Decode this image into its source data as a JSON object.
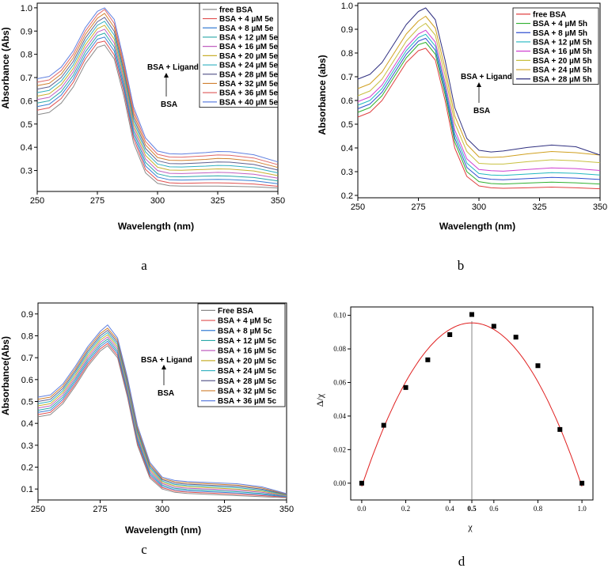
{
  "chart_data": [
    {
      "id": "a",
      "type": "line",
      "caption": "a",
      "xlabel": "Wavelength (nm)",
      "ylabel": "Absorbance (Abs)",
      "xlim": [
        250,
        350
      ],
      "ylim": [
        0.21,
        1.02
      ],
      "xticks": [
        250,
        275,
        300,
        325,
        350
      ],
      "xtick_labels": [
        "250",
        "275",
        "300",
        "325",
        "350"
      ],
      "yticks": [
        0.3,
        0.4,
        0.5,
        0.6,
        0.7,
        0.8,
        0.9,
        1.0
      ],
      "ytick_labels": [
        "0.3",
        "0.4",
        "0.5",
        "0.6",
        "0.7",
        "0.8",
        "0.9",
        "1.0"
      ],
      "annotation_top": "BSA + Ligand",
      "annotation_bottom": "BSA",
      "x": [
        250,
        255,
        260,
        265,
        270,
        275,
        278,
        282,
        286,
        290,
        295,
        300,
        305,
        310,
        320,
        325,
        330,
        340,
        350
      ],
      "series": [
        {
          "name": "free BSA",
          "color": "#8a8a8a",
          "values": [
            0.54,
            0.55,
            0.59,
            0.66,
            0.76,
            0.83,
            0.84,
            0.78,
            0.62,
            0.42,
            0.29,
            0.245,
            0.235,
            0.233,
            0.233,
            0.233,
            0.232,
            0.23,
            0.225
          ]
        },
        {
          "name": "BSA + 4 µM 5e",
          "color": "#e05050",
          "values": [
            0.56,
            0.57,
            0.61,
            0.68,
            0.78,
            0.85,
            0.857,
            0.797,
            0.64,
            0.44,
            0.305,
            0.258,
            0.247,
            0.245,
            0.247,
            0.247,
            0.246,
            0.242,
            0.232
          ]
        },
        {
          "name": "BSA + 8 µM 5e",
          "color": "#3a7fd5",
          "values": [
            0.575,
            0.585,
            0.625,
            0.695,
            0.795,
            0.865,
            0.874,
            0.814,
            0.655,
            0.455,
            0.32,
            0.272,
            0.26,
            0.259,
            0.261,
            0.262,
            0.261,
            0.256,
            0.243
          ]
        },
        {
          "name": "BSA + 12 µM 5e",
          "color": "#2aa8a8",
          "values": [
            0.59,
            0.6,
            0.64,
            0.71,
            0.81,
            0.88,
            0.891,
            0.831,
            0.67,
            0.47,
            0.335,
            0.286,
            0.274,
            0.273,
            0.276,
            0.277,
            0.276,
            0.27,
            0.255
          ]
        },
        {
          "name": "BSA + 16 µM 5e",
          "color": "#c060c0",
          "values": [
            0.605,
            0.615,
            0.655,
            0.725,
            0.825,
            0.895,
            0.908,
            0.848,
            0.685,
            0.485,
            0.35,
            0.3,
            0.288,
            0.287,
            0.29,
            0.292,
            0.291,
            0.284,
            0.267
          ]
        },
        {
          "name": "BSA + 20 µM 5e",
          "color": "#c8b030",
          "values": [
            0.62,
            0.63,
            0.67,
            0.74,
            0.84,
            0.91,
            0.925,
            0.865,
            0.7,
            0.5,
            0.365,
            0.314,
            0.302,
            0.301,
            0.305,
            0.307,
            0.306,
            0.298,
            0.278
          ]
        },
        {
          "name": "BSA + 24 µM 5e",
          "color": "#30b0c0",
          "values": [
            0.635,
            0.645,
            0.685,
            0.755,
            0.855,
            0.925,
            0.942,
            0.882,
            0.715,
            0.515,
            0.38,
            0.328,
            0.316,
            0.315,
            0.319,
            0.322,
            0.321,
            0.312,
            0.29
          ]
        },
        {
          "name": "BSA + 28 µM 5e",
          "color": "#606090",
          "values": [
            0.65,
            0.66,
            0.7,
            0.77,
            0.87,
            0.94,
            0.959,
            0.899,
            0.73,
            0.53,
            0.395,
            0.342,
            0.33,
            0.329,
            0.334,
            0.337,
            0.336,
            0.326,
            0.302
          ]
        },
        {
          "name": "BSA + 32 µM 5e",
          "color": "#d08030",
          "values": [
            0.665,
            0.675,
            0.715,
            0.785,
            0.885,
            0.955,
            0.976,
            0.916,
            0.745,
            0.545,
            0.41,
            0.356,
            0.344,
            0.343,
            0.348,
            0.352,
            0.351,
            0.34,
            0.313
          ]
        },
        {
          "name": "BSA + 36 µM 5e",
          "color": "#e06868",
          "values": [
            0.68,
            0.69,
            0.73,
            0.8,
            0.9,
            0.97,
            0.993,
            0.933,
            0.76,
            0.56,
            0.425,
            0.37,
            0.358,
            0.357,
            0.363,
            0.367,
            0.366,
            0.354,
            0.325
          ]
        },
        {
          "name": "BSA + 40 µM 5e",
          "color": "#6080e0",
          "values": [
            0.695,
            0.705,
            0.745,
            0.815,
            0.915,
            0.985,
            1.0,
            0.95,
            0.775,
            0.575,
            0.44,
            0.384,
            0.372,
            0.371,
            0.377,
            0.382,
            0.381,
            0.368,
            0.337
          ]
        }
      ]
    },
    {
      "id": "b",
      "type": "line",
      "caption": "b",
      "xlabel": "Wavelength (nm)",
      "ylabel": "Absorbance (abs)",
      "xlim": [
        250,
        350
      ],
      "ylim": [
        0.19,
        1.01
      ],
      "xticks": [
        250,
        275,
        300,
        325,
        350
      ],
      "xtick_labels": [
        "250",
        "275",
        "300",
        "325",
        "350"
      ],
      "yticks": [
        0.2,
        0.3,
        0.4,
        0.5,
        0.6,
        0.7,
        0.8,
        0.9,
        1.0
      ],
      "ytick_labels": [
        "0.2",
        "0.3",
        "0.4",
        "0.5",
        "0.6",
        "0.7",
        "0.8",
        "0.9",
        "1.0"
      ],
      "annotation_top": "BSA + Ligand",
      "annotation_bottom": "BSA",
      "x": [
        250,
        255,
        260,
        265,
        270,
        275,
        278,
        282,
        286,
        290,
        295,
        300,
        305,
        310,
        320,
        330,
        340,
        350
      ],
      "series": [
        {
          "name": "free BSA",
          "color": "#e04040",
          "values": [
            0.53,
            0.55,
            0.6,
            0.68,
            0.76,
            0.81,
            0.82,
            0.77,
            0.6,
            0.4,
            0.28,
            0.24,
            0.232,
            0.23,
            0.232,
            0.235,
            0.232,
            0.228
          ]
        },
        {
          "name": "BSA + 4 µM 5h",
          "color": "#30b030",
          "values": [
            0.55,
            0.57,
            0.62,
            0.7,
            0.78,
            0.835,
            0.845,
            0.795,
            0.625,
            0.425,
            0.3,
            0.258,
            0.25,
            0.248,
            0.252,
            0.256,
            0.253,
            0.248
          ]
        },
        {
          "name": "BSA + 8 µM 5h",
          "color": "#3050d0",
          "values": [
            0.565,
            0.585,
            0.635,
            0.715,
            0.795,
            0.85,
            0.862,
            0.812,
            0.642,
            0.442,
            0.318,
            0.275,
            0.268,
            0.266,
            0.271,
            0.276,
            0.273,
            0.267
          ]
        },
        {
          "name": "BSA + 12 µM 5h",
          "color": "#20b8c0",
          "values": [
            0.58,
            0.6,
            0.65,
            0.73,
            0.81,
            0.865,
            0.879,
            0.829,
            0.659,
            0.459,
            0.336,
            0.292,
            0.286,
            0.284,
            0.29,
            0.296,
            0.293,
            0.286
          ]
        },
        {
          "name": "BSA + 16 µM 5h",
          "color": "#d040d0",
          "values": [
            0.595,
            0.615,
            0.665,
            0.745,
            0.825,
            0.88,
            0.896,
            0.846,
            0.676,
            0.476,
            0.354,
            0.309,
            0.304,
            0.302,
            0.309,
            0.316,
            0.313,
            0.305
          ]
        },
        {
          "name": "BSA + 20 µM 5h",
          "color": "#c8c040",
          "values": [
            0.62,
            0.64,
            0.69,
            0.77,
            0.85,
            0.905,
            0.925,
            0.875,
            0.705,
            0.505,
            0.385,
            0.335,
            0.332,
            0.332,
            0.342,
            0.35,
            0.346,
            0.338
          ]
        },
        {
          "name": "BSA + 24 µM 5h",
          "color": "#d0a020",
          "values": [
            0.65,
            0.67,
            0.72,
            0.8,
            0.88,
            0.935,
            0.955,
            0.905,
            0.735,
            0.535,
            0.415,
            0.362,
            0.36,
            0.362,
            0.375,
            0.385,
            0.38,
            0.37
          ]
        },
        {
          "name": "BSA + 28 µM 5h",
          "color": "#303080",
          "values": [
            0.69,
            0.71,
            0.76,
            0.84,
            0.92,
            0.975,
            0.99,
            0.94,
            0.77,
            0.57,
            0.44,
            0.39,
            0.383,
            0.387,
            0.402,
            0.412,
            0.405,
            0.37
          ]
        }
      ]
    },
    {
      "id": "c",
      "type": "line",
      "caption": "c",
      "xlabel": "Wavelength (nm)",
      "ylabel": "Absorbance(Abs)",
      "xlim": [
        250,
        350
      ],
      "ylim": [
        0.05,
        0.95
      ],
      "xticks": [
        250,
        275,
        300,
        325,
        350
      ],
      "xtick_labels": [
        "250",
        "275",
        "300",
        "325",
        "350"
      ],
      "yticks": [
        0.1,
        0.2,
        0.3,
        0.4,
        0.5,
        0.6,
        0.7,
        0.8,
        0.9
      ],
      "ytick_labels": [
        "0.1",
        "0.2",
        "0.3",
        "0.4",
        "0.5",
        "0.6",
        "0.7",
        "0.8",
        "0.9"
      ],
      "annotation_top": "BSA + Ligand",
      "annotation_bottom": "BSA",
      "x": [
        250,
        255,
        260,
        265,
        270,
        275,
        278,
        282,
        286,
        290,
        295,
        300,
        305,
        310,
        320,
        330,
        340,
        350
      ],
      "series": [
        {
          "name": "Free BSA",
          "color": "#8a8a8a",
          "values": [
            0.43,
            0.44,
            0.49,
            0.57,
            0.66,
            0.73,
            0.755,
            0.7,
            0.52,
            0.3,
            0.15,
            0.1,
            0.085,
            0.08,
            0.075,
            0.07,
            0.065,
            0.06
          ]
        },
        {
          "name": "BSA + 4 µM 5c",
          "color": "#e05050",
          "values": [
            0.44,
            0.45,
            0.5,
            0.58,
            0.67,
            0.74,
            0.765,
            0.71,
            0.53,
            0.31,
            0.158,
            0.106,
            0.091,
            0.086,
            0.081,
            0.076,
            0.07,
            0.063
          ]
        },
        {
          "name": "BSA + 8 µM 5c",
          "color": "#3a7fd5",
          "values": [
            0.45,
            0.46,
            0.51,
            0.59,
            0.68,
            0.75,
            0.775,
            0.72,
            0.54,
            0.32,
            0.166,
            0.112,
            0.097,
            0.092,
            0.087,
            0.082,
            0.075,
            0.065
          ]
        },
        {
          "name": "BSA + 12 µM 5c",
          "color": "#2aa8a8",
          "values": [
            0.46,
            0.47,
            0.52,
            0.6,
            0.69,
            0.76,
            0.785,
            0.73,
            0.55,
            0.33,
            0.174,
            0.118,
            0.103,
            0.098,
            0.093,
            0.088,
            0.08,
            0.067
          ]
        },
        {
          "name": "BSA + 16 µM 5c",
          "color": "#c060c0",
          "values": [
            0.47,
            0.48,
            0.53,
            0.61,
            0.7,
            0.77,
            0.795,
            0.74,
            0.56,
            0.34,
            0.182,
            0.124,
            0.109,
            0.104,
            0.099,
            0.094,
            0.085,
            0.069
          ]
        },
        {
          "name": "BSA + 20 µM 5c",
          "color": "#c8b030",
          "values": [
            0.48,
            0.49,
            0.54,
            0.62,
            0.71,
            0.78,
            0.805,
            0.75,
            0.57,
            0.35,
            0.19,
            0.13,
            0.115,
            0.11,
            0.105,
            0.1,
            0.09,
            0.071
          ]
        },
        {
          "name": "BSA + 24 µM 5c",
          "color": "#30b0c0",
          "values": [
            0.49,
            0.5,
            0.55,
            0.63,
            0.72,
            0.79,
            0.815,
            0.76,
            0.58,
            0.36,
            0.198,
            0.136,
            0.121,
            0.116,
            0.111,
            0.106,
            0.095,
            0.073
          ]
        },
        {
          "name": "BSA + 28 µM 5c",
          "color": "#606090",
          "values": [
            0.5,
            0.51,
            0.56,
            0.64,
            0.73,
            0.8,
            0.825,
            0.77,
            0.59,
            0.37,
            0.206,
            0.142,
            0.127,
            0.122,
            0.117,
            0.112,
            0.1,
            0.075
          ]
        },
        {
          "name": "BSA + 32 µM 5c",
          "color": "#d08030",
          "values": [
            0.51,
            0.52,
            0.57,
            0.65,
            0.74,
            0.81,
            0.835,
            0.78,
            0.6,
            0.38,
            0.214,
            0.148,
            0.133,
            0.128,
            0.123,
            0.118,
            0.105,
            0.077
          ]
        },
        {
          "name": "BSA + 36 µM 5c",
          "color": "#6080e0",
          "values": [
            0.52,
            0.53,
            0.58,
            0.66,
            0.75,
            0.82,
            0.85,
            0.79,
            0.61,
            0.39,
            0.222,
            0.154,
            0.139,
            0.134,
            0.129,
            0.124,
            0.11,
            0.079
          ]
        }
      ]
    },
    {
      "id": "d",
      "type": "scatter",
      "caption": "d",
      "xlabel": "χ",
      "ylabel": "Δ/χ",
      "xlim": [
        -0.05,
        1.05
      ],
      "ylim": [
        -0.01,
        0.105
      ],
      "xticks": [
        0.0,
        0.2,
        0.4,
        0.5,
        0.6,
        0.8,
        1.0
      ],
      "xtick_labels": [
        "0.0",
        "0.2",
        "0.4",
        "0.5",
        "0.6",
        "0.8",
        "1.0"
      ],
      "yticks": [
        0.0,
        0.02,
        0.04,
        0.06,
        0.08,
        0.1
      ],
      "ytick_labels": [
        "0.00",
        "0.02",
        "0.04",
        "0.06",
        "0.08",
        "0.10"
      ],
      "vline_x": 0.5,
      "x": [
        0.0,
        0.1,
        0.2,
        0.3,
        0.4,
        0.5,
        0.6,
        0.7,
        0.8,
        0.9,
        1.0
      ],
      "y": [
        0.0,
        0.0345,
        0.057,
        0.0735,
        0.0885,
        0.1005,
        0.0935,
        0.087,
        0.07,
        0.032,
        0.0
      ],
      "fit": {
        "name": "polynomial fit",
        "color": "#e02020",
        "coefficients": [
          -0.002,
          0.39,
          -0.39
        ]
      }
    }
  ]
}
